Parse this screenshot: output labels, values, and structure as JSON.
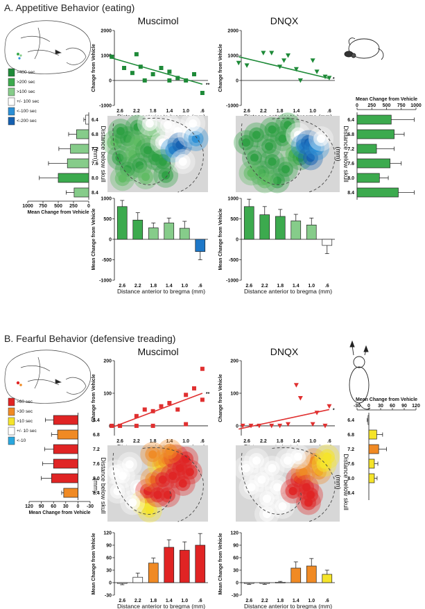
{
  "figure": {
    "section_a_title": "A. Appetitive Behavior (eating)",
    "section_b_title": "B. Fearful Behavior (defensive treading)",
    "muscimol_label": "Muscimol",
    "dnqx_label": "DNQX"
  },
  "axis_text": {
    "x_distance": "Distance anterior to bregma (mm)",
    "change_from_vehicle": "Change from Vehicle",
    "mean_change": "Mean Change from Vehicle",
    "depth_line1": "Distance below skull",
    "depth_line2": "(mm)"
  },
  "legend_a": [
    {
      "label": ">400 sec",
      "color": "#1e8a38"
    },
    {
      "label": ">200 sec",
      "color": "#3caa4e"
    },
    {
      "label": ">100 sec",
      "color": "#86cc8a"
    },
    {
      "label": "+/- 100 sec",
      "color": "#ffffff"
    },
    {
      "label": "<-100 sec",
      "color": "#2b8fd6"
    },
    {
      "label": "<-200 sec",
      "color": "#1560b0"
    }
  ],
  "legend_b": [
    {
      "label": ">60 sec",
      "color": "#e02424"
    },
    {
      "label": ">30 sec",
      "color": "#f08a24"
    },
    {
      "label": ">10 sec",
      "color": "#f5e42a"
    },
    {
      "label": "+/- 10 sec",
      "color": "#ffffff"
    },
    {
      "label": "<-10",
      "color": "#2aa7de"
    }
  ],
  "chart_data": [
    {
      "id": "A-muscimol-scatter",
      "type": "scatter",
      "title": "Muscimol",
      "xlabel": "Distance anterior to bregma (mm)",
      "ylabel": "Change from Vehicle",
      "xticks": [
        "2.6",
        "2.2",
        "1.8",
        "1.4",
        "1.0",
        ".6"
      ],
      "yticks": [
        -1000,
        0,
        1000,
        2000
      ],
      "ylim": [
        -1000,
        2000
      ],
      "points": [
        [
          2.8,
          950
        ],
        [
          2.5,
          500
        ],
        [
          2.3,
          300
        ],
        [
          2.2,
          1050
        ],
        [
          2.1,
          550
        ],
        [
          2.0,
          0
        ],
        [
          1.8,
          250
        ],
        [
          1.6,
          500
        ],
        [
          1.4,
          350
        ],
        [
          1.4,
          0
        ],
        [
          1.2,
          100
        ],
        [
          1.0,
          0
        ],
        [
          0.8,
          250
        ],
        [
          0.6,
          -500
        ]
      ],
      "fit": [
        [
          2.8,
          900
        ],
        [
          0.6,
          -150
        ]
      ],
      "annotation": "**"
    },
    {
      "id": "A-dnqx-scatter",
      "type": "scatter",
      "title": "DNQX",
      "xlabel": "Distance anterior to bregma (mm)",
      "ylabel": "Change from Vehicle",
      "xticks": [
        "2.6",
        "2.2",
        "1.8",
        "1.4",
        "1.0",
        ".6"
      ],
      "yticks": [
        -1000,
        0,
        1000,
        2000
      ],
      "ylim": [
        -1000,
        2000
      ],
      "points": [
        [
          2.8,
          700
        ],
        [
          2.6,
          600
        ],
        [
          2.2,
          1100
        ],
        [
          2.0,
          1100
        ],
        [
          1.8,
          550
        ],
        [
          1.7,
          800
        ],
        [
          1.6,
          1000
        ],
        [
          1.4,
          450
        ],
        [
          1.3,
          0
        ],
        [
          1.0,
          800
        ],
        [
          0.9,
          350
        ],
        [
          0.7,
          150
        ],
        [
          0.6,
          100
        ]
      ],
      "fit": [
        [
          2.8,
          950
        ],
        [
          0.6,
          80
        ]
      ],
      "annotation": "*"
    },
    {
      "id": "A-muscimol-bars",
      "type": "bar",
      "xlabel": "Distance anterior to bregma (mm)",
      "ylabel": "Mean Change from Vehicle",
      "categories": [
        "2.6",
        "2.2",
        "1.8",
        "1.4",
        "1.0",
        ".6"
      ],
      "values": [
        800,
        470,
        280,
        400,
        270,
        -300
      ],
      "errors": [
        150,
        180,
        120,
        120,
        170,
        200
      ],
      "colors": [
        "#3caa4e",
        "#3caa4e",
        "#86cc8a",
        "#86cc8a",
        "#86cc8a",
        "#1e78c8"
      ],
      "yticks": [
        -1000,
        -500,
        0,
        500,
        1000
      ],
      "ylim": [
        -1000,
        1000
      ]
    },
    {
      "id": "A-dnqx-bars",
      "type": "bar",
      "xlabel": "Distance anterior to bregma (mm)",
      "ylabel": "Mean Change from Vehicle",
      "categories": [
        "2.6",
        "2.2",
        "1.8",
        "1.4",
        "1.0",
        ".6"
      ],
      "values": [
        800,
        600,
        560,
        450,
        350,
        -150
      ],
      "errors": [
        180,
        200,
        170,
        160,
        170,
        200
      ],
      "colors": [
        "#3caa4e",
        "#3caa4e",
        "#3caa4e",
        "#86cc8a",
        "#86cc8a",
        "#ffffff"
      ],
      "yticks": [
        -1000,
        -500,
        0,
        500,
        1000
      ],
      "ylim": [
        -1000,
        1000
      ]
    },
    {
      "id": "A-left-depth-bars",
      "type": "bar",
      "orientation": "horizontal-reversed",
      "xlabel": "Mean Change from Vehicle",
      "categories": [
        "6.4",
        "6.8",
        "7.2",
        "7.6",
        "8.0",
        "8.4"
      ],
      "values": [
        50,
        200,
        300,
        350,
        500,
        240
      ],
      "errors": [
        30,
        130,
        190,
        310,
        310,
        130
      ],
      "colors": [
        "#ffffff",
        "#86cc8a",
        "#86cc8a",
        "#86cc8a",
        "#3caa4e",
        "#86cc8a"
      ],
      "xticks": [
        1000,
        750,
        500,
        250,
        0
      ],
      "xlim": [
        0,
        1000
      ]
    },
    {
      "id": "A-right-depth-bars",
      "type": "bar",
      "orientation": "horizontal",
      "xlabel": "Mean Change from Vehicle",
      "categories": [
        "6.4",
        "6.8",
        "7.2",
        "7.6",
        "8.0",
        "8.4"
      ],
      "values": [
        580,
        630,
        330,
        560,
        380,
        700
      ],
      "errors": [
        390,
        170,
        300,
        190,
        150,
        270
      ],
      "colors": [
        "#3caa4e",
        "#3caa4e",
        "#3caa4e",
        "#3caa4e",
        "#3caa4e",
        "#3caa4e"
      ],
      "xticks": [
        0,
        250,
        500,
        750,
        1000
      ],
      "xlim": [
        0,
        1000
      ]
    },
    {
      "id": "B-muscimol-scatter",
      "type": "scatter",
      "title": "Muscimol",
      "xlabel": "Distance anterior to bregma (mm)",
      "ylabel": "Change from Vehicle",
      "xticks": [
        "2.6",
        "2.2",
        "1.8",
        "1.4",
        "1.0",
        ".6"
      ],
      "yticks": [
        0,
        100,
        200
      ],
      "ylim": [
        -30,
        200
      ],
      "points": [
        [
          2.8,
          0
        ],
        [
          2.6,
          0
        ],
        [
          2.2,
          0
        ],
        [
          2.2,
          30
        ],
        [
          2.0,
          50
        ],
        [
          1.8,
          0
        ],
        [
          1.8,
          45
        ],
        [
          1.6,
          60
        ],
        [
          1.4,
          70
        ],
        [
          1.2,
          50
        ],
        [
          1.0,
          5
        ],
        [
          1.0,
          95
        ],
        [
          0.8,
          115
        ],
        [
          0.6,
          175
        ],
        [
          0.6,
          80
        ]
      ],
      "fit": [
        [
          2.8,
          -5
        ],
        [
          0.6,
          100
        ]
      ],
      "annotation": "**"
    },
    {
      "id": "B-dnqx-scatter",
      "type": "scatter",
      "title": "DNQX",
      "xlabel": "Distance anterior to bregma (mm)",
      "ylabel": "Change from Vehicle",
      "xticks": [
        "2.6",
        "2.2",
        "1.8",
        "1.4",
        "1.0",
        ".6"
      ],
      "yticks": [
        0,
        100,
        200
      ],
      "ylim": [
        -30,
        200
      ],
      "points": [
        [
          2.7,
          0
        ],
        [
          2.5,
          0
        ],
        [
          2.3,
          0
        ],
        [
          2.0,
          0
        ],
        [
          1.8,
          0
        ],
        [
          1.6,
          5
        ],
        [
          1.4,
          125
        ],
        [
          1.3,
          85
        ],
        [
          1.0,
          5
        ],
        [
          0.9,
          40
        ],
        [
          0.7,
          0
        ],
        [
          0.6,
          60
        ]
      ],
      "fit": [
        [
          2.8,
          -10
        ],
        [
          0.6,
          50
        ]
      ],
      "annotation": "*"
    },
    {
      "id": "B-muscimol-bars",
      "type": "bar",
      "xlabel": "Distance anterior to bregma (mm)",
      "ylabel": "Mean Change from Vehicle",
      "categories": [
        "2.6",
        "2.2",
        "1.8",
        "1.4",
        "1.0",
        ".6"
      ],
      "values": [
        -2,
        13,
        47,
        85,
        78,
        90
      ],
      "errors": [
        3,
        10,
        12,
        18,
        20,
        28
      ],
      "colors": [
        "#ffffff",
        "#ffffff",
        "#f08a24",
        "#e02424",
        "#e02424",
        "#e02424"
      ],
      "yticks": [
        -30,
        0,
        30,
        60,
        90,
        120
      ],
      "ylim": [
        -30,
        120
      ]
    },
    {
      "id": "B-dnqx-bars",
      "type": "bar",
      "xlabel": "Distance anterior to bregma (mm)",
      "ylabel": "Mean Change from Vehicle",
      "categories": [
        "2.6",
        "2.2",
        "1.8",
        "1.4",
        "1.0",
        ".6"
      ],
      "values": [
        -2,
        -2,
        1,
        35,
        40,
        20
      ],
      "errors": [
        2,
        2,
        2,
        15,
        18,
        10
      ],
      "colors": [
        "#ffffff",
        "#ffffff",
        "#ffffff",
        "#f08a24",
        "#f08a24",
        "#f5e42a"
      ],
      "yticks": [
        -30,
        0,
        30,
        60,
        90,
        120
      ],
      "ylim": [
        -30,
        120
      ]
    },
    {
      "id": "B-left-depth-bars",
      "type": "bar",
      "orientation": "horizontal-reversed",
      "xlabel": "Mean Change from Vehicle",
      "categories": [
        "6.4",
        "6.8",
        "7.2",
        "7.6",
        "8.0",
        "8.4"
      ],
      "values": [
        60,
        50,
        60,
        60,
        65,
        35
      ],
      "errors": [
        20,
        15,
        22,
        27,
        25,
        5
      ],
      "colors": [
        "#e02424",
        "#f08a24",
        "#e02424",
        "#e02424",
        "#e02424",
        "#f08a24"
      ],
      "xticks": [
        120,
        90,
        60,
        30,
        0,
        -30
      ],
      "xlim": [
        -30,
        120
      ]
    },
    {
      "id": "B-right-depth-bars",
      "type": "bar",
      "orientation": "horizontal",
      "xlabel": "Mean Change from Vehicle",
      "categories": [
        "6.4",
        "6.8",
        "7.2",
        "7.6",
        "8.0",
        "8.4"
      ],
      "values": [
        -2,
        20,
        25,
        14,
        14,
        0
      ],
      "errors": [
        2,
        15,
        20,
        9,
        7,
        0
      ],
      "colors": [
        "#ffffff",
        "#f5e42a",
        "#f08a24",
        "#f5e42a",
        "#f5e42a",
        "#ffffff"
      ],
      "xticks": [
        -30,
        0,
        30,
        60,
        90,
        120
      ],
      "xlim": [
        -30,
        120
      ]
    },
    {
      "id": "A-muscimol-map",
      "type": "heatmap",
      "spots": [
        [
          0.07,
          0.35,
          "g2"
        ],
        [
          0.13,
          0.2,
          "g1"
        ],
        [
          0.2,
          0.3,
          "g1"
        ],
        [
          0.12,
          0.55,
          "g1"
        ],
        [
          0.2,
          0.7,
          "g1"
        ],
        [
          0.25,
          0.5,
          "g2"
        ],
        [
          0.3,
          0.15,
          "g1"
        ],
        [
          0.3,
          0.35,
          "g2"
        ],
        [
          0.32,
          0.65,
          "g1"
        ],
        [
          0.38,
          0.8,
          "g2"
        ],
        [
          0.4,
          0.45,
          "g1"
        ],
        [
          0.45,
          0.22,
          "g2"
        ],
        [
          0.48,
          0.55,
          "g1"
        ],
        [
          0.55,
          0.35,
          "w"
        ],
        [
          0.55,
          0.6,
          "g1"
        ],
        [
          0.58,
          0.78,
          "g1"
        ],
        [
          0.6,
          0.12,
          "w"
        ],
        [
          0.65,
          0.45,
          "b1"
        ],
        [
          0.7,
          0.2,
          "w"
        ],
        [
          0.72,
          0.38,
          "b2"
        ],
        [
          0.75,
          0.6,
          "w"
        ],
        [
          0.82,
          0.25,
          "w"
        ],
        [
          0.88,
          0.3,
          "b1"
        ],
        [
          0.85,
          0.1,
          "w"
        ],
        [
          0.42,
          0.1,
          "w"
        ],
        [
          0.15,
          0.82,
          "g2"
        ]
      ]
    },
    {
      "id": "A-dnqx-map",
      "type": "heatmap",
      "spots": [
        [
          0.1,
          0.35,
          "g1"
        ],
        [
          0.18,
          0.55,
          "g1"
        ],
        [
          0.2,
          0.25,
          "g1"
        ],
        [
          0.25,
          0.75,
          "g1"
        ],
        [
          0.32,
          0.4,
          "g1"
        ],
        [
          0.35,
          0.6,
          "g1"
        ],
        [
          0.35,
          0.18,
          "g1"
        ],
        [
          0.4,
          0.85,
          "g1"
        ],
        [
          0.45,
          0.3,
          "g1"
        ],
        [
          0.48,
          0.7,
          "g1"
        ],
        [
          0.5,
          0.12,
          "g1"
        ],
        [
          0.55,
          0.5,
          "g2"
        ],
        [
          0.6,
          0.25,
          "w"
        ],
        [
          0.62,
          0.55,
          "g1"
        ],
        [
          0.65,
          0.4,
          "b1"
        ],
        [
          0.7,
          0.35,
          "b2"
        ],
        [
          0.72,
          0.55,
          "b2"
        ],
        [
          0.78,
          0.42,
          "b1"
        ],
        [
          0.82,
          0.3,
          "w"
        ],
        [
          0.28,
          0.85,
          "g2"
        ],
        [
          0.15,
          0.75,
          "g2"
        ]
      ]
    },
    {
      "id": "B-muscimol-map",
      "type": "heatmap",
      "spots": [
        [
          0.08,
          0.35,
          "w"
        ],
        [
          0.1,
          0.6,
          "w"
        ],
        [
          0.15,
          0.4,
          "w"
        ],
        [
          0.22,
          0.25,
          "w"
        ],
        [
          0.3,
          0.55,
          "w"
        ],
        [
          0.35,
          0.75,
          "y"
        ],
        [
          0.4,
          0.6,
          "r"
        ],
        [
          0.42,
          0.85,
          "y"
        ],
        [
          0.45,
          0.45,
          "o"
        ],
        [
          0.5,
          0.65,
          "r"
        ],
        [
          0.52,
          0.25,
          "y"
        ],
        [
          0.55,
          0.45,
          "r"
        ],
        [
          0.58,
          0.2,
          "o"
        ],
        [
          0.6,
          0.65,
          "r"
        ],
        [
          0.65,
          0.4,
          "r"
        ],
        [
          0.68,
          0.15,
          "r"
        ],
        [
          0.72,
          0.3,
          "r"
        ],
        [
          0.75,
          0.5,
          "r"
        ],
        [
          0.78,
          0.18,
          "r"
        ],
        [
          0.82,
          0.35,
          "r"
        ],
        [
          0.45,
          0.12,
          "o"
        ],
        [
          0.62,
          0.08,
          "o"
        ],
        [
          0.25,
          0.75,
          "w"
        ]
      ]
    },
    {
      "id": "B-dnqx-map",
      "type": "heatmap",
      "spots": [
        [
          0.1,
          0.3,
          "w"
        ],
        [
          0.15,
          0.55,
          "w"
        ],
        [
          0.2,
          0.2,
          "w"
        ],
        [
          0.25,
          0.45,
          "w"
        ],
        [
          0.3,
          0.7,
          "w"
        ],
        [
          0.35,
          0.3,
          "w"
        ],
        [
          0.4,
          0.55,
          "w"
        ],
        [
          0.45,
          0.8,
          "w"
        ],
        [
          0.5,
          0.2,
          "w"
        ],
        [
          0.55,
          0.6,
          "r"
        ],
        [
          0.6,
          0.45,
          "r"
        ],
        [
          0.65,
          0.35,
          "o"
        ],
        [
          0.68,
          0.55,
          "r"
        ],
        [
          0.7,
          0.75,
          "r"
        ],
        [
          0.72,
          0.65,
          "r"
        ],
        [
          0.75,
          0.2,
          "o"
        ],
        [
          0.8,
          0.35,
          "o"
        ],
        [
          0.85,
          0.25,
          "y"
        ],
        [
          0.88,
          0.15,
          "y"
        ],
        [
          0.6,
          0.15,
          "w"
        ],
        [
          0.3,
          0.9,
          "w"
        ]
      ]
    }
  ]
}
